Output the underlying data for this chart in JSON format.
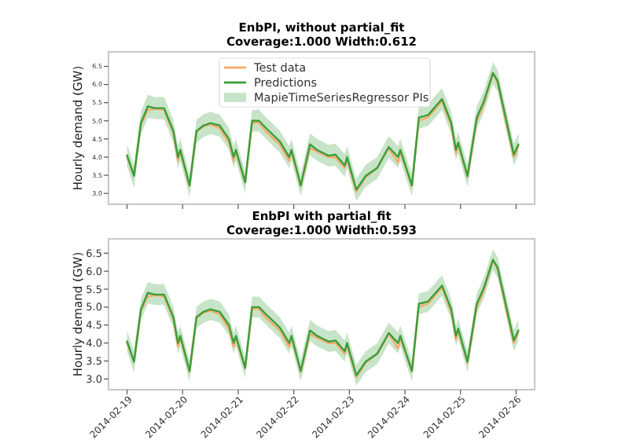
{
  "chart_data": [
    {
      "type": "line",
      "title": "EnbPI, without partial_fit",
      "subtitle": "Coverage:1.000  Width:0.612",
      "ylabel": "Hourly demand (GW)",
      "legend": "top",
      "tick_labels": "y",
      "annotations": [
        "MapieTimeSeriesRegressor PIs"
      ],
      "x": [
        "2014-02-19T00:00",
        "2014-02-19T03:00",
        "2014-02-19T06:00",
        "2014-02-19T09:00",
        "2014-02-19T12:00",
        "2014-02-19T16:00",
        "2014-02-19T20:00",
        "2014-02-19T22:00",
        "2014-02-19T23:00",
        "2014-02-20T03:00",
        "2014-02-20T06:00",
        "2014-02-20T09:00",
        "2014-02-20T12:00",
        "2014-02-20T16:00",
        "2014-02-20T20:00",
        "2014-02-20T22:00",
        "2014-02-20T23:00",
        "2014-02-21T03:00",
        "2014-02-21T06:00",
        "2014-02-21T09:00",
        "2014-02-21T12:00",
        "2014-02-21T18:00",
        "2014-02-21T22:00",
        "2014-02-21T23:00",
        "2014-02-22T03:00",
        "2014-02-22T07:00",
        "2014-02-22T10:00",
        "2014-02-22T15:00",
        "2014-02-22T18:00",
        "2014-02-22T22:00",
        "2014-02-22T23:00",
        "2014-02-23T03:00",
        "2014-02-23T07:00",
        "2014-02-23T12:00",
        "2014-02-23T17:00",
        "2014-02-23T21:00",
        "2014-02-23T22:00",
        "2014-02-24T03:00",
        "2014-02-24T06:00",
        "2014-02-24T10:00",
        "2014-02-24T16:00",
        "2014-02-24T20:00",
        "2014-02-24T22:00",
        "2014-02-24T23:00",
        "2014-02-25T03:00",
        "2014-02-25T07:00",
        "2014-02-25T10:00",
        "2014-02-25T14:00",
        "2014-02-25T16:00",
        "2014-02-25T20:00",
        "2014-02-25T23:00",
        "2014-02-26T01:00"
      ],
      "xlim": [
        "2014-02-18T16:00",
        "2014-02-26T08:00"
      ],
      "xticks": [
        {
          "value": "2014-02-19",
          "label": null
        },
        {
          "value": "2014-02-20",
          "label": null
        },
        {
          "value": "2014-02-21",
          "label": null
        },
        {
          "value": "2014-02-22",
          "label": null
        },
        {
          "value": "2014-02-23",
          "label": null
        },
        {
          "value": "2014-02-24",
          "label": null
        },
        {
          "value": "2014-02-25",
          "label": null
        },
        {
          "value": "2014-02-26",
          "label": null
        }
      ],
      "ylim": [
        2.7,
        6.9
      ],
      "yticks": [
        {
          "value": 3,
          "label": "3.0"
        },
        3.5,
        {
          "value": 4,
          "label": "4.0"
        },
        4.5,
        {
          "value": 5,
          "label": "5.0"
        },
        5.5,
        {
          "value": 6,
          "label": "6.0"
        },
        6.5
      ],
      "series": [
        {
          "name": "Test data",
          "color": "#f9a86a",
          "values": [
            4.0,
            3.5,
            4.9,
            5.3,
            5.33,
            5.3,
            4.65,
            3.9,
            4.15,
            3.2,
            4.7,
            4.85,
            4.9,
            4.8,
            4.4,
            3.9,
            4.15,
            3.3,
            4.95,
            4.95,
            4.7,
            4.35,
            3.9,
            4.15,
            3.2,
            4.25,
            4.15,
            4.0,
            4.0,
            3.7,
            3.95,
            3.05,
            3.45,
            3.7,
            4.25,
            3.85,
            4.15,
            3.2,
            5.0,
            5.1,
            5.55,
            4.85,
            4.1,
            4.35,
            3.45,
            5.0,
            5.45,
            6.3,
            6.05,
            4.85,
            4.0,
            4.3
          ]
        },
        {
          "name": "Predictions",
          "color": "#3a9e3a",
          "values": [
            4.05,
            3.48,
            4.94,
            5.4,
            5.35,
            5.35,
            4.72,
            4.0,
            4.2,
            3.22,
            4.72,
            4.87,
            4.94,
            4.87,
            4.5,
            4.0,
            4.2,
            3.31,
            5.0,
            5.0,
            4.8,
            4.43,
            4.0,
            4.2,
            3.22,
            4.35,
            4.2,
            4.04,
            4.07,
            3.77,
            4.0,
            3.1,
            3.48,
            3.7,
            4.28,
            4.0,
            4.2,
            3.22,
            5.09,
            5.16,
            5.6,
            4.94,
            4.2,
            4.4,
            3.48,
            5.09,
            5.52,
            6.32,
            6.1,
            4.94,
            4.07,
            4.35
          ],
          "lower": [
            3.75,
            3.15,
            4.62,
            5.08,
            5.05,
            5.04,
            4.4,
            3.68,
            3.9,
            2.9,
            4.4,
            4.55,
            4.63,
            4.56,
            4.2,
            3.7,
            3.9,
            3.0,
            4.7,
            4.7,
            4.5,
            4.12,
            3.7,
            3.9,
            2.92,
            4.05,
            3.9,
            3.74,
            3.76,
            3.46,
            3.7,
            2.8,
            3.18,
            3.4,
            3.98,
            3.7,
            3.9,
            2.92,
            4.78,
            4.86,
            5.3,
            4.63,
            3.9,
            4.1,
            3.18,
            4.78,
            5.22,
            6.02,
            5.8,
            4.64,
            3.77,
            4.05
          ],
          "upper": [
            4.35,
            3.78,
            5.25,
            5.72,
            5.65,
            5.66,
            5.02,
            4.31,
            4.5,
            3.52,
            5.03,
            5.18,
            5.25,
            5.17,
            4.8,
            4.3,
            4.5,
            3.61,
            5.3,
            5.31,
            5.1,
            4.73,
            4.3,
            4.5,
            3.52,
            4.66,
            4.5,
            4.34,
            4.37,
            4.08,
            4.3,
            3.4,
            3.78,
            4.0,
            4.58,
            4.3,
            4.5,
            3.52,
            5.4,
            5.46,
            5.9,
            5.25,
            4.5,
            4.7,
            3.78,
            5.4,
            5.82,
            6.62,
            6.4,
            5.24,
            4.37,
            4.65
          ]
        }
      ]
    },
    {
      "type": "line",
      "title": "EnbPI with partial_fit",
      "subtitle": "Coverage:1.000  Width:0.593",
      "ylabel": "Hourly demand (GW)",
      "x": [
        "2014-02-19T00:00",
        "2014-02-19T03:00",
        "2014-02-19T06:00",
        "2014-02-19T09:00",
        "2014-02-19T12:00",
        "2014-02-19T16:00",
        "2014-02-19T20:00",
        "2014-02-19T22:00",
        "2014-02-19T23:00",
        "2014-02-20T03:00",
        "2014-02-20T06:00",
        "2014-02-20T09:00",
        "2014-02-20T12:00",
        "2014-02-20T16:00",
        "2014-02-20T20:00",
        "2014-02-20T22:00",
        "2014-02-20T23:00",
        "2014-02-21T03:00",
        "2014-02-21T06:00",
        "2014-02-21T09:00",
        "2014-02-21T12:00",
        "2014-02-21T18:00",
        "2014-02-21T22:00",
        "2014-02-21T23:00",
        "2014-02-22T03:00",
        "2014-02-22T07:00",
        "2014-02-22T10:00",
        "2014-02-22T15:00",
        "2014-02-22T18:00",
        "2014-02-22T22:00",
        "2014-02-22T23:00",
        "2014-02-23T03:00",
        "2014-02-23T07:00",
        "2014-02-23T12:00",
        "2014-02-23T17:00",
        "2014-02-23T21:00",
        "2014-02-23T22:00",
        "2014-02-24T03:00",
        "2014-02-24T06:00",
        "2014-02-24T10:00",
        "2014-02-24T16:00",
        "2014-02-24T20:00",
        "2014-02-24T22:00",
        "2014-02-24T23:00",
        "2014-02-25T03:00",
        "2014-02-25T07:00",
        "2014-02-25T10:00",
        "2014-02-25T14:00",
        "2014-02-25T16:00",
        "2014-02-25T20:00",
        "2014-02-25T23:00",
        "2014-02-26T01:00"
      ],
      "xlim": [
        "2014-02-18T16:00",
        "2014-02-26T08:00"
      ],
      "xticks": [
        "2014-02-19",
        "2014-02-20",
        "2014-02-21",
        "2014-02-22",
        "2014-02-23",
        "2014-02-24",
        "2014-02-25",
        "2014-02-26"
      ],
      "ylim": [
        2.7,
        6.9
      ],
      "yticks": [
        {
          "value": 3,
          "label": "3.0"
        },
        3.5,
        {
          "value": 4,
          "label": "4.0"
        },
        4.5,
        {
          "value": 5,
          "label": "5.0"
        },
        5.5,
        {
          "value": 6,
          "label": "6.0"
        },
        6.5
      ],
      "series": [
        {
          "color": "#f9a86a",
          "values": [
            4.0,
            3.5,
            4.9,
            5.3,
            5.33,
            5.3,
            4.65,
            3.9,
            4.15,
            3.2,
            4.7,
            4.85,
            4.9,
            4.8,
            4.4,
            3.9,
            4.15,
            3.3,
            4.95,
            4.95,
            4.7,
            4.35,
            3.9,
            4.15,
            3.2,
            4.25,
            4.15,
            4.0,
            4.0,
            3.7,
            3.95,
            3.05,
            3.45,
            3.7,
            4.25,
            3.85,
            4.15,
            3.2,
            5.0,
            5.1,
            5.55,
            4.85,
            4.1,
            4.35,
            3.45,
            5.0,
            5.45,
            6.3,
            6.05,
            4.85,
            4.0,
            4.3
          ]
        },
        {
          "color": "#3a9e3a",
          "values": [
            4.05,
            3.48,
            4.94,
            5.4,
            5.35,
            5.35,
            4.72,
            4.0,
            4.2,
            3.22,
            4.72,
            4.87,
            4.94,
            4.87,
            4.5,
            4.0,
            4.2,
            3.31,
            5.0,
            5.0,
            4.8,
            4.43,
            4.0,
            4.2,
            3.22,
            4.35,
            4.2,
            4.04,
            4.07,
            3.77,
            4.0,
            3.1,
            3.48,
            3.7,
            4.28,
            4.0,
            4.2,
            3.22,
            5.09,
            5.16,
            5.6,
            4.94,
            4.2,
            4.4,
            3.48,
            5.09,
            5.52,
            6.32,
            6.1,
            4.94,
            4.07,
            4.35
          ],
          "lower": [
            3.77,
            3.17,
            4.64,
            5.1,
            5.06,
            5.05,
            4.42,
            3.7,
            3.91,
            2.92,
            4.42,
            4.56,
            4.64,
            4.57,
            4.21,
            3.71,
            3.91,
            3.02,
            4.71,
            4.71,
            4.51,
            4.14,
            3.71,
            3.91,
            2.93,
            4.06,
            3.91,
            3.75,
            3.78,
            3.48,
            3.71,
            2.81,
            3.19,
            3.41,
            3.99,
            3.71,
            3.91,
            2.93,
            4.8,
            4.87,
            5.31,
            4.65,
            3.91,
            4.11,
            3.19,
            4.8,
            5.23,
            6.03,
            5.81,
            4.65,
            3.78,
            4.06
          ],
          "upper": [
            4.34,
            3.77,
            5.23,
            5.7,
            5.64,
            5.64,
            5.01,
            4.3,
            4.49,
            3.51,
            5.01,
            5.16,
            5.23,
            5.16,
            4.79,
            4.29,
            4.49,
            3.6,
            5.29,
            5.29,
            5.09,
            4.72,
            4.29,
            4.49,
            3.51,
            4.65,
            4.49,
            4.33,
            4.36,
            4.07,
            4.29,
            3.39,
            3.77,
            3.99,
            4.57,
            4.29,
            4.49,
            3.51,
            5.38,
            5.45,
            5.89,
            5.23,
            4.49,
            4.69,
            3.77,
            5.38,
            5.81,
            6.61,
            6.39,
            5.23,
            4.36,
            4.64
          ]
        }
      ]
    }
  ]
}
